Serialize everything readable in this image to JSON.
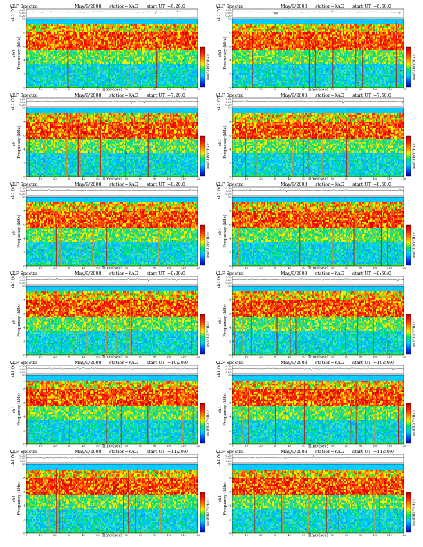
{
  "figure": {
    "title_prefix": "VLF Spectra",
    "date": "May/9/2008",
    "station": "station=KAG",
    "start_label": "start UT",
    "panel_labels": [
      {
        "start": "=6:20:0"
      },
      {
        "start": "=6:50:0"
      },
      {
        "start": "=7:20:0"
      },
      {
        "start": "=7:50:0"
      },
      {
        "start": "=8:20:0"
      },
      {
        "start": "=8:50:0"
      },
      {
        "start": "=9:20:0"
      },
      {
        "start": "=9:50:0"
      },
      {
        "start": "=10:20:0"
      },
      {
        "start": "=10:50:0"
      },
      {
        "start": "=11:20:0"
      },
      {
        "start": "=11:50:0"
      }
    ]
  },
  "chart_data": {
    "type": "heatmap",
    "subplots": 12,
    "time_axis": {
      "label": "Time (sec)",
      "range": [
        0,
        120
      ],
      "ticks": [
        0,
        10,
        20,
        30,
        40,
        50,
        60,
        70,
        80,
        90,
        100,
        110,
        120
      ]
    },
    "frequency_axis": {
      "label": "Frequency (kHz)",
      "channel_label": "ch1",
      "range": [
        0,
        10
      ],
      "ticks": [
        0,
        2,
        4,
        6,
        8,
        10
      ]
    },
    "waveform_axis": {
      "label": "ch1 (V)",
      "ticks": [
        "0.20",
        "0.00",
        "-0.20"
      ],
      "range": [
        -0.2,
        0.2
      ]
    },
    "colorbar": {
      "label": "log(PSD(V²/Hz))",
      "colormap": [
        "#0000b0",
        "#0050ff",
        "#00d0ff",
        "#00e070",
        "#f0f000",
        "#ff8000",
        "#ff1a00",
        "#c00000"
      ],
      "ticks": []
    },
    "spectrogram_bands": [
      {
        "freq_range_khz": [
          9.2,
          10
        ],
        "level": "cyan band"
      },
      {
        "freq_range_khz": [
          8.0,
          9.2
        ],
        "level": "yellow-red"
      },
      {
        "freq_range_khz": [
          5.5,
          8.0
        ],
        "level": "red (max)"
      },
      {
        "freq_range_khz": [
          3.5,
          5.5
        ],
        "level": "green-yellow"
      },
      {
        "freq_range_khz": [
          0.3,
          3.5
        ],
        "level": "cyan-green"
      },
      {
        "freq_range_khz": [
          0,
          0.3
        ],
        "level": "green"
      }
    ]
  }
}
